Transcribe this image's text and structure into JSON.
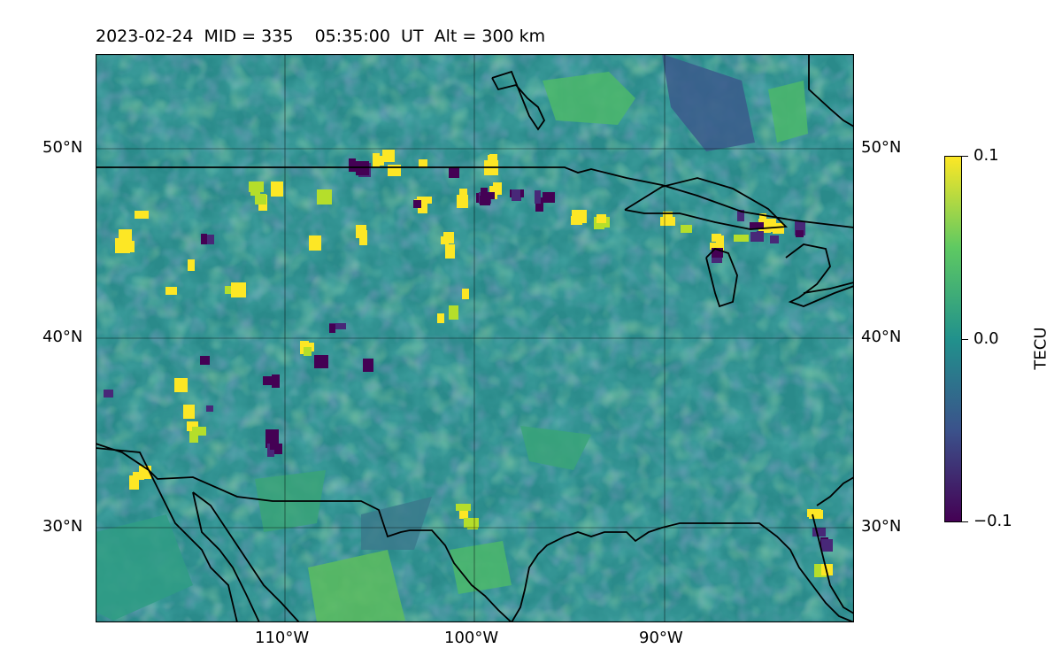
{
  "title": {
    "date": "2023-02-24",
    "mid": "MID = 335",
    "time": "05:35:00  UT",
    "alt": "Alt = 300 km"
  },
  "map": {
    "lat_range": [
      25,
      55
    ],
    "lon_range": [
      -120,
      -80
    ],
    "lat_ticks": [
      "50°N",
      "40°N",
      "30°N"
    ],
    "lon_ticks": [
      "110°W",
      "100°W",
      "90°W"
    ],
    "gridlines": true
  },
  "colorbar": {
    "label": "TECU",
    "ticks": [
      "0.1",
      "0.0",
      "−0.1"
    ],
    "min": -0.1,
    "max": 0.1,
    "colormap": "viridis"
  },
  "colors": {
    "background_field": "#2c8e8c",
    "low": "#440154",
    "mid": "#21918c",
    "high": "#fde725"
  }
}
